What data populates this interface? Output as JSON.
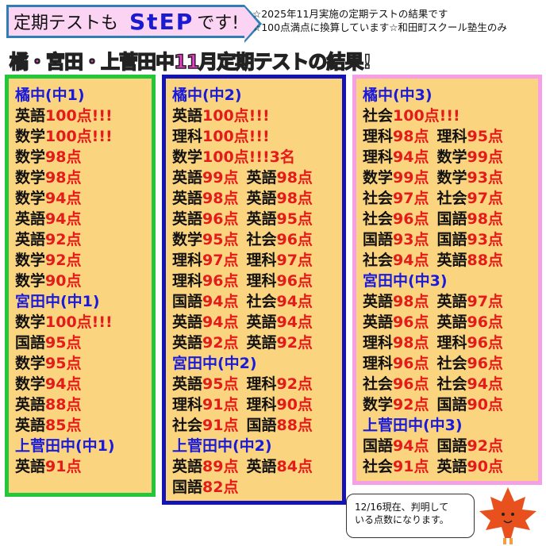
{
  "banner": {
    "prefix": "定期テストも",
    "brand": "StEP",
    "suffix": "です!"
  },
  "notes": [
    "☆2025年11月実施の定期テストの結果です",
    "☆100点満点に換算しています☆和田町スクール塾生のみ"
  ],
  "headline": {
    "main": "橘・宮田・上菅田中11月定期テスト",
    "tail": "の結果!"
  },
  "colors": {
    "col1_border": "#22c83a",
    "col2_border": "#1414b4",
    "col3_border": "#f5a0e6",
    "fill": "#fbd47f",
    "subject": "#111111",
    "score": "#e51a1a",
    "header": "#1a1adb"
  },
  "columns": [
    {
      "lines": [
        {
          "header": "橘中(中1)"
        },
        {
          "entries": [
            [
              "英語",
              "100点!!!"
            ]
          ]
        },
        {
          "entries": [
            [
              "数学",
              "100点!!!"
            ]
          ]
        },
        {
          "entries": [
            [
              "数学",
              "98点"
            ]
          ]
        },
        {
          "entries": [
            [
              "数学",
              "98点"
            ]
          ]
        },
        {
          "entries": [
            [
              "数学",
              "94点"
            ]
          ]
        },
        {
          "entries": [
            [
              "英語",
              "94点"
            ]
          ]
        },
        {
          "entries": [
            [
              "英語",
              "92点"
            ]
          ]
        },
        {
          "entries": [
            [
              "数学",
              "92点"
            ]
          ]
        },
        {
          "entries": [
            [
              "数学",
              "90点"
            ]
          ]
        },
        {
          "header": "宮田中(中1)"
        },
        {
          "entries": [
            [
              "数学",
              "100点!!!"
            ]
          ]
        },
        {
          "entries": [
            [
              "国語",
              "95点"
            ]
          ]
        },
        {
          "entries": [
            [
              "数学",
              "95点"
            ]
          ]
        },
        {
          "entries": [
            [
              "数学",
              "94点"
            ]
          ]
        },
        {
          "entries": [
            [
              "英語",
              "88点"
            ]
          ]
        },
        {
          "entries": [
            [
              "英語",
              "85点"
            ]
          ]
        },
        {
          "header": "上菅田中(中1)"
        },
        {
          "entries": [
            [
              "英語",
              "91点"
            ]
          ]
        }
      ]
    },
    {
      "lines": [
        {
          "header": "橘中(中2)"
        },
        {
          "entries": [
            [
              "英語",
              "100点!!!"
            ]
          ]
        },
        {
          "entries": [
            [
              "理科",
              "100点!!!"
            ]
          ]
        },
        {
          "entries": [
            [
              "数学",
              "100点!!!3名"
            ]
          ]
        },
        {
          "entries": [
            [
              "英語",
              "99点"
            ],
            [
              "英語",
              "98点"
            ]
          ]
        },
        {
          "entries": [
            [
              "英語",
              "98点"
            ],
            [
              "英語",
              "98点"
            ]
          ]
        },
        {
          "entries": [
            [
              "英語",
              "96点"
            ],
            [
              "英語",
              "95点"
            ]
          ]
        },
        {
          "entries": [
            [
              "数学",
              "95点"
            ],
            [
              "社会",
              "96点"
            ]
          ]
        },
        {
          "entries": [
            [
              "理科",
              "97点"
            ],
            [
              "理科",
              "97点"
            ]
          ]
        },
        {
          "entries": [
            [
              "理科",
              "96点"
            ],
            [
              "理科",
              "96点"
            ]
          ]
        },
        {
          "entries": [
            [
              "国語",
              "94点"
            ],
            [
              "社会",
              "94点"
            ]
          ]
        },
        {
          "entries": [
            [
              "英語",
              "94点"
            ],
            [
              "英語",
              "94点"
            ]
          ]
        },
        {
          "entries": [
            [
              "英語",
              "92点"
            ],
            [
              "英語",
              "92点"
            ]
          ]
        },
        {
          "header": "宮田中(中2)"
        },
        {
          "entries": [
            [
              "英語",
              "95点"
            ],
            [
              "理科",
              "92点"
            ]
          ]
        },
        {
          "entries": [
            [
              "理科",
              "91点"
            ],
            [
              "理科",
              "90点"
            ]
          ]
        },
        {
          "entries": [
            [
              "社会",
              "91点"
            ],
            [
              "国語",
              "88点"
            ]
          ]
        },
        {
          "header": "上菅田中(中2)"
        },
        {
          "entries": [
            [
              "英語",
              "89点"
            ],
            [
              "英語",
              "84点"
            ]
          ]
        },
        {
          "entries": [
            [
              "国語",
              "82点"
            ]
          ]
        }
      ]
    },
    {
      "lines": [
        {
          "header": "橘中(中3)"
        },
        {
          "entries": [
            [
              "社会",
              "100点!!!"
            ]
          ]
        },
        {
          "entries": [
            [
              "理科",
              "98点"
            ],
            [
              "理科",
              "95点"
            ]
          ]
        },
        {
          "entries": [
            [
              "理科",
              "94点"
            ],
            [
              "数学",
              "99点"
            ]
          ]
        },
        {
          "entries": [
            [
              "数学",
              "99点"
            ],
            [
              "数学",
              "93点"
            ]
          ]
        },
        {
          "entries": [
            [
              "社会",
              "97点"
            ],
            [
              "社会",
              "97点"
            ]
          ]
        },
        {
          "entries": [
            [
              "社会",
              "96点"
            ],
            [
              "国語",
              "98点"
            ]
          ]
        },
        {
          "entries": [
            [
              "国語",
              "93点"
            ],
            [
              "国語",
              "93点"
            ]
          ]
        },
        {
          "entries": [
            [
              "社会",
              "94点"
            ],
            [
              "英語",
              "88点"
            ]
          ]
        },
        {
          "header": "宮田中(中3)"
        },
        {
          "entries": [
            [
              "英語",
              "98点"
            ],
            [
              "英語",
              "97点"
            ]
          ]
        },
        {
          "entries": [
            [
              "英語",
              "96点"
            ],
            [
              "英語",
              "96点"
            ]
          ]
        },
        {
          "entries": [
            [
              "理科",
              "98点"
            ],
            [
              "理科",
              "96点"
            ]
          ]
        },
        {
          "entries": [
            [
              "理科",
              "96点"
            ],
            [
              "社会",
              "96点"
            ]
          ]
        },
        {
          "entries": [
            [
              "社会",
              "96点"
            ],
            [
              "社会",
              "94点"
            ]
          ]
        },
        {
          "entries": [
            [
              "数学",
              "92点"
            ],
            [
              "国語",
              "90点"
            ]
          ]
        },
        {
          "header": "上菅田中(中3)"
        },
        {
          "entries": [
            [
              "国語",
              "94点"
            ],
            [
              "国語",
              "92点"
            ]
          ]
        },
        {
          "entries": [
            [
              "社会",
              "91点"
            ],
            [
              "英語",
              "90点"
            ]
          ]
        }
      ]
    }
  ],
  "bubble": {
    "line1": "12/16現在、判明して",
    "line2": "いる点数になります。"
  }
}
